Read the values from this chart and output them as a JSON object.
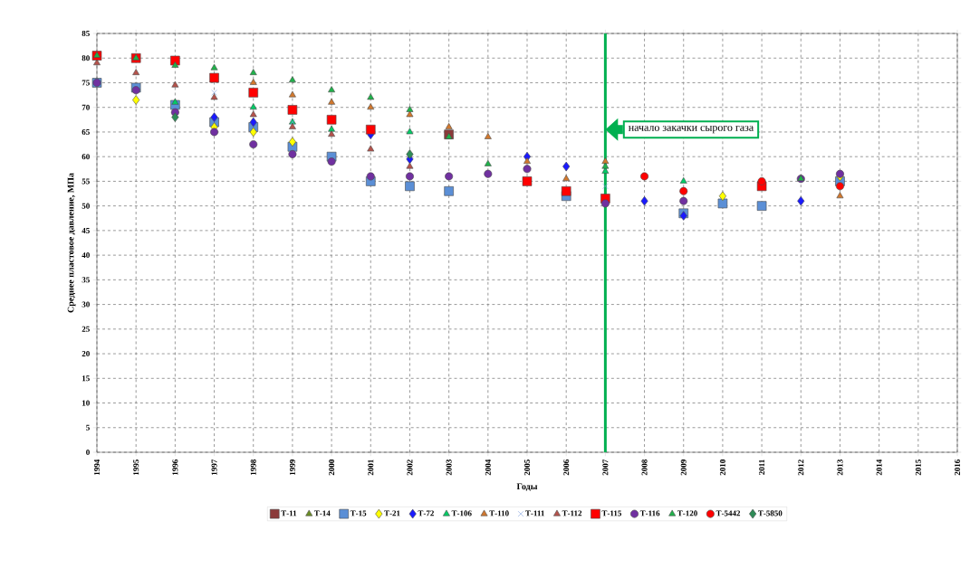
{
  "chart_data": {
    "type": "scatter",
    "xlabel": "Годы",
    "ylabel": "Среднее пластовое давление, МПа",
    "x": [
      1994,
      1995,
      1996,
      1997,
      1998,
      1999,
      2000,
      2001,
      2002,
      2003,
      2004,
      2005,
      2006,
      2007,
      2008,
      2009,
      2010,
      2011,
      2012,
      2013
    ],
    "series": [
      {
        "name": "Т-11",
        "color": "#8b3a3a",
        "marker": "square",
        "values": [
          null,
          null,
          null,
          null,
          null,
          null,
          null,
          null,
          null,
          64.5,
          null,
          null,
          null,
          null,
          null,
          null,
          null,
          null,
          null,
          null
        ]
      },
      {
        "name": "Т-14",
        "color": "#6b8e23",
        "marker": "triangle",
        "values": [
          null,
          null,
          null,
          null,
          null,
          null,
          null,
          null,
          null,
          null,
          null,
          null,
          null,
          null,
          null,
          null,
          null,
          null,
          null,
          null
        ]
      },
      {
        "name": "Т-15",
        "color": "#5b8fd6",
        "marker": "square",
        "values": [
          75,
          74,
          70.5,
          67,
          66,
          62,
          60,
          55,
          54,
          53,
          null,
          null,
          52,
          null,
          null,
          48.5,
          50.5,
          50,
          null,
          55
        ]
      },
      {
        "name": "Т-21",
        "color": "#ffff00",
        "marker": "diamond",
        "values": [
          null,
          71.5,
          null,
          66,
          65,
          63,
          null,
          null,
          null,
          null,
          null,
          null,
          null,
          null,
          null,
          null,
          52,
          null,
          null,
          56
        ]
      },
      {
        "name": "Т-72",
        "color": "#1a1aff",
        "marker": "diamond",
        "values": [
          null,
          null,
          null,
          68,
          67,
          null,
          null,
          64.5,
          59.5,
          null,
          null,
          60,
          58,
          null,
          51,
          48,
          null,
          null,
          51,
          null
        ]
      },
      {
        "name": "Т-106",
        "color": "#00cc66",
        "marker": "triangle",
        "values": [
          null,
          null,
          71,
          null,
          70,
          67,
          65.5,
          null,
          65,
          null,
          null,
          null,
          null,
          57,
          null,
          55,
          null,
          null,
          null,
          null
        ]
      },
      {
        "name": "Т-110",
        "color": "#d2782d",
        "marker": "triangle",
        "values": [
          null,
          null,
          null,
          null,
          75,
          72.5,
          71,
          70,
          68.5,
          66,
          64,
          59,
          55.5,
          59,
          null,
          null,
          null,
          null,
          null,
          52
        ]
      },
      {
        "name": "Т-111",
        "color": "#7f9fdf",
        "marker": "cross",
        "values": [
          null,
          null,
          null,
          73,
          null,
          67,
          null,
          null,
          null,
          null,
          null,
          null,
          null,
          54,
          null,
          null,
          null,
          null,
          null,
          null
        ]
      },
      {
        "name": "Т-112",
        "color": "#b5524b",
        "marker": "triangle",
        "values": [
          79,
          77,
          74.5,
          72,
          68.5,
          66,
          64.5,
          61.5,
          58,
          null,
          null,
          null,
          null,
          null,
          null,
          null,
          null,
          null,
          null,
          null
        ]
      },
      {
        "name": "Т-115",
        "color": "#ff0000",
        "marker": "square",
        "values": [
          80.5,
          80,
          79.5,
          76,
          73,
          69.5,
          67.5,
          65.5,
          null,
          null,
          null,
          55,
          53,
          51.5,
          null,
          null,
          null,
          54,
          null,
          null
        ]
      },
      {
        "name": "Т-116",
        "color": "#7030a0",
        "marker": "circle",
        "values": [
          75,
          73.5,
          69,
          65,
          62.5,
          60.5,
          59,
          56,
          56,
          56,
          56.5,
          57.5,
          null,
          50.5,
          null,
          51,
          null,
          null,
          55.5,
          56.5
        ]
      },
      {
        "name": "Т-120",
        "color": "#1fb24a",
        "marker": "triangle",
        "values": [
          80.5,
          80,
          78.5,
          78,
          77,
          75.5,
          73.5,
          72,
          69.5,
          64,
          58.5,
          null,
          null,
          58,
          null,
          null,
          null,
          null,
          55.5,
          null
        ]
      },
      {
        "name": "Т-5442",
        "color": "#ff0000",
        "marker": "circle",
        "values": [
          null,
          null,
          null,
          null,
          null,
          null,
          null,
          null,
          null,
          null,
          null,
          null,
          null,
          null,
          56,
          53,
          null,
          55,
          null,
          54
        ]
      },
      {
        "name": "Т-5850",
        "color": "#2e8b57",
        "marker": "diamond",
        "values": [
          null,
          null,
          68,
          null,
          null,
          null,
          null,
          null,
          60.5,
          null,
          null,
          null,
          null,
          null,
          null,
          null,
          null,
          null,
          null,
          null
        ]
      }
    ],
    "xlim": [
      1994,
      2016
    ],
    "xticks": [
      1994,
      1995,
      1996,
      1997,
      1998,
      1999,
      2000,
      2001,
      2002,
      2003,
      2004,
      2005,
      2006,
      2007,
      2008,
      2009,
      2010,
      2011,
      2012,
      2013,
      2014,
      2015,
      2016
    ],
    "ylim": [
      0,
      85
    ],
    "yticks": [
      0,
      5,
      10,
      15,
      20,
      25,
      30,
      35,
      40,
      45,
      50,
      55,
      60,
      65,
      70,
      75,
      80,
      85
    ],
    "grid": true,
    "legend": "bottom",
    "ref_lines": [
      {
        "axis": "x",
        "value": 2007,
        "label": "начало закачки сырого газа",
        "color": "#00b050"
      }
    ]
  }
}
